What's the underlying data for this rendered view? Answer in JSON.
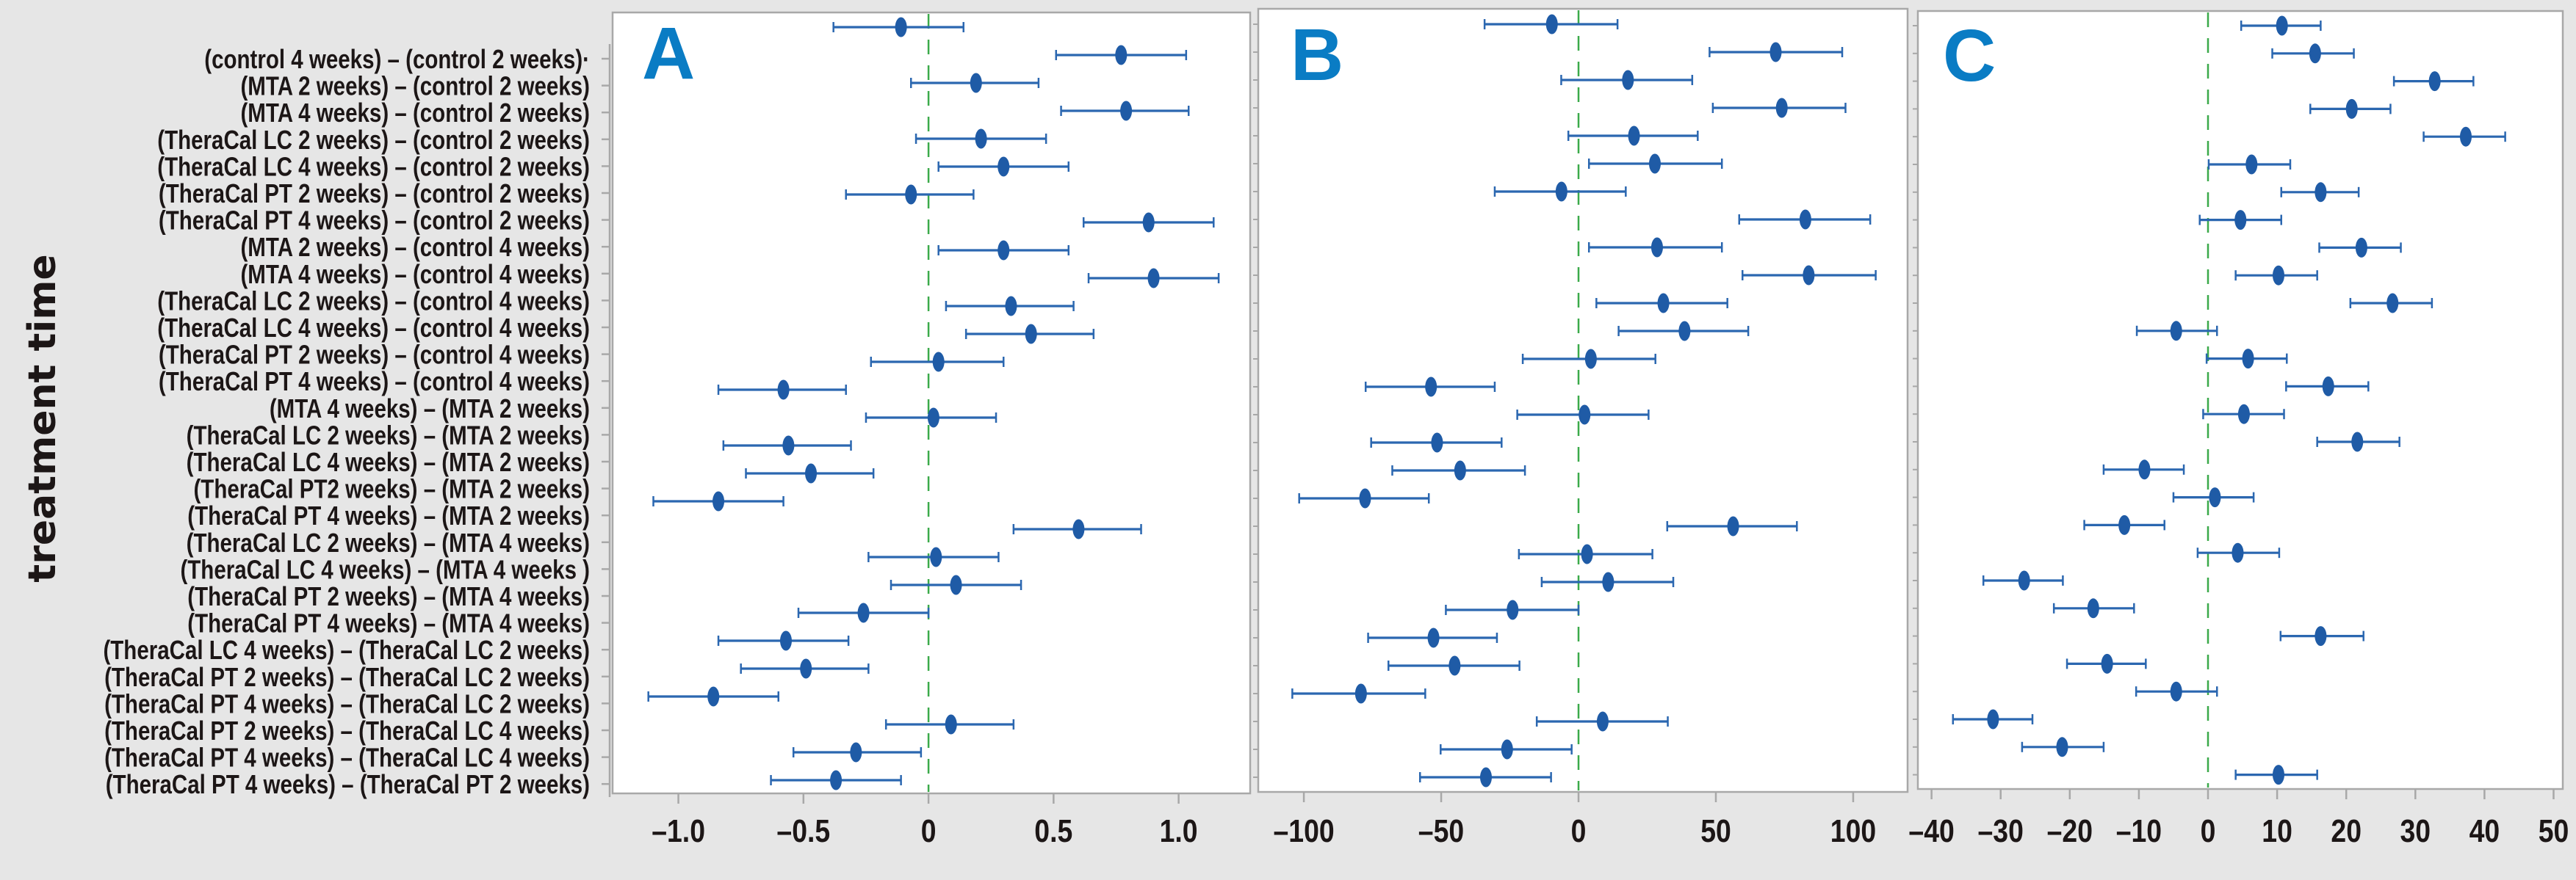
{
  "chart_data": {
    "type": "scatter",
    "subtype": "forest-plot-with-confidence-intervals",
    "ylabel": "treatment time",
    "categories": [
      "(control 4 weeks) – (control 2 weeks)·",
      "(MTA 2 weeks) – (control 2 weeks)",
      "(MTA 4 weeks) – (control 2 weeks)",
      "(TheraCal LC 2 weeks) – (control 2 weeks)",
      "(TheraCal LC 4 weeks) – (control 2 weeks)",
      "(TheraCal PT 2 weeks) – (control 2 weeks)",
      "(TheraCal PT 4 weeks) – (control 2 weeks)",
      "(MTA 2 weeks) – (control 4 weeks)",
      "(MTA 4 weeks) – (control 4 weeks)",
      "(TheraCal LC 2 weeks) – (control 4 weeks)",
      "(TheraCal LC 4 weeks) – (control 4 weeks)",
      "(TheraCal PT 2 weeks) – (control 4 weeks)",
      "(TheraCal PT 4 weeks) – (control 4 weeks)",
      "(MTA 4 weeks) – (MTA 2 weeks)",
      "(TheraCal LC 2 weeks) – (MTA 2 weeks)",
      "(TheraCal LC 4 weeks) – (MTA 2 weeks)",
      "(TheraCal PT2 weeks) – (MTA 2 weeks)",
      "(TheraCal PT 4 weeks) – (MTA 2 weeks)",
      "(TheraCal LC 2 weeks) – (MTA 4 weeks)",
      "(TheraCal LC 4 weeks) – (MTA 4 weeks )",
      "(TheraCal PT 2 weeks) – (MTA 4 weeks)",
      "(TheraCal PT 4 weeks) – (MTA 4 weeks)",
      "(TheraCal LC 4 weeks) – (TheraCal LC 2 weeks)",
      "(TheraCal PT 2 weeks) – (TheraCal LC 2 weeks)",
      "(TheraCal PT 4 weeks) – (TheraCal LC 2 weeks)",
      "(TheraCal PT 2 weeks) – (TheraCal LC 4 weeks)",
      "(TheraCal PT 4 weeks) – (TheraCal LC 4 weeks)",
      "(TheraCal PT 4 weeks) – (TheraCal PT 2 weeks)"
    ],
    "grid": false,
    "colors": {
      "marker": "#1f5ba6",
      "error_bar": "#2b67b0",
      "reference_line": "#3baa4a",
      "panel_letter": "#0a7cc4",
      "panel_border": "#a8a8a8",
      "background": "#e6e6e6"
    },
    "panels": [
      {
        "label": "A",
        "xlim": [
          -1.263,
          1.286
        ],
        "xticks": [
          -1.0,
          -0.5,
          0,
          0.5,
          1.0
        ],
        "xtick_labels": [
          "–1.0",
          "–0.5",
          "0",
          "0.5",
          "1.0"
        ],
        "reference_line": 0,
        "series": [
          {
            "name": "estimate",
            "values": [
              -0.11,
              0.77,
              0.19,
              0.79,
              0.21,
              0.3,
              -0.07,
              0.88,
              0.3,
              0.9,
              0.33,
              0.41,
              0.04,
              -0.58,
              0.02,
              -0.56,
              -0.47,
              -0.84,
              0.6,
              0.03,
              0.11,
              -0.26,
              -0.57,
              -0.49,
              -0.86,
              0.09,
              -0.29,
              -0.37
            ]
          },
          {
            "name": "lower",
            "values": [
              -0.38,
              0.51,
              -0.07,
              0.53,
              -0.05,
              0.04,
              -0.33,
              0.62,
              0.04,
              0.64,
              0.07,
              0.15,
              -0.23,
              -0.84,
              -0.25,
              -0.82,
              -0.73,
              -1.1,
              0.34,
              -0.24,
              -0.15,
              -0.52,
              -0.84,
              -0.75,
              -1.12,
              -0.17,
              -0.54,
              -0.63
            ]
          },
          {
            "name": "upper",
            "values": [
              0.14,
              1.03,
              0.44,
              1.04,
              0.47,
              0.56,
              0.18,
              1.14,
              0.56,
              1.16,
              0.58,
              0.66,
              0.3,
              -0.33,
              0.27,
              -0.31,
              -0.22,
              -0.58,
              0.85,
              0.28,
              0.37,
              0.0,
              -0.32,
              -0.24,
              -0.6,
              0.34,
              -0.03,
              -0.11
            ]
          }
        ]
      },
      {
        "label": "B",
        "xlim": [
          -116.6,
          119.8
        ],
        "xticks": [
          -100,
          -50,
          0,
          50,
          100
        ],
        "xtick_labels": [
          "–100",
          "–50",
          "0",
          "50",
          "100"
        ],
        "reference_line": 0,
        "series": [
          {
            "name": "estimate",
            "values": [
              -9.7,
              71.8,
              18.0,
              74.0,
              20.2,
              27.8,
              -6.2,
              82.6,
              28.6,
              83.8,
              30.9,
              38.6,
              4.5,
              -53.7,
              2.2,
              -51.5,
              -43.1,
              -77.7,
              56.3,
              3.1,
              10.8,
              -24.0,
              -52.8,
              -45.1,
              -79.2,
              8.8,
              -26.0,
              -33.7
            ]
          },
          {
            "name": "lower",
            "values": [
              -34.2,
              47.7,
              -6.3,
              48.9,
              -3.7,
              3.8,
              -30.5,
              58.5,
              3.8,
              59.7,
              6.5,
              14.6,
              -20.3,
              -77.5,
              -22.3,
              -75.5,
              -67.8,
              -101.7,
              32.3,
              -21.7,
              -13.4,
              -48.3,
              -76.6,
              -69.2,
              -104.2,
              -15.2,
              -50.2,
              -57.7
            ]
          },
          {
            "name": "upper",
            "values": [
              14.2,
              96.0,
              41.4,
              97.2,
              43.4,
              52.2,
              17.2,
              106.2,
              52.2,
              108.2,
              54.2,
              61.8,
              28.0,
              -30.5,
              25.5,
              -28.0,
              -19.5,
              -54.5,
              79.5,
              26.9,
              34.5,
              0.0,
              -29.7,
              -21.5,
              -55.8,
              32.5,
              -2.5,
              -10.0
            ]
          }
        ]
      },
      {
        "label": "C",
        "xlim": [
          -41.98,
          51.33
        ],
        "xticks": [
          -40,
          -30,
          -20,
          -10,
          0,
          10,
          20,
          30,
          40,
          50
        ],
        "xtick_labels": [
          "–40",
          "–30",
          "–20",
          "–10",
          "0",
          "10",
          "20",
          "30",
          "40",
          "50"
        ],
        "reference_line": 0,
        "series": [
          {
            "name": "estimate",
            "values": [
              10.7,
              15.5,
              32.8,
              20.8,
              37.3,
              6.3,
              16.3,
              4.7,
              22.2,
              10.2,
              26.7,
              -4.6,
              5.8,
              17.4,
              5.2,
              21.6,
              -9.2,
              1.0,
              -12.1,
              4.3,
              -26.6,
              -16.6,
              16.3,
              -14.6,
              -4.6,
              -31.1,
              -21.1,
              10.2
            ]
          },
          {
            "name": "lower",
            "values": [
              4.8,
              9.3,
              26.9,
              14.8,
              31.2,
              0.1,
              10.6,
              -1.2,
              16.1,
              4.0,
              20.6,
              -10.3,
              -0.2,
              11.3,
              -0.7,
              15.8,
              -15.1,
              -5.0,
              -17.9,
              -1.5,
              -32.5,
              -22.3,
              10.5,
              -20.4,
              -10.4,
              -36.9,
              -26.9,
              4.0
            ]
          },
          {
            "name": "upper",
            "values": [
              16.3,
              21.1,
              38.4,
              26.4,
              43.0,
              11.9,
              21.8,
              10.6,
              27.9,
              15.8,
              32.4,
              1.3,
              11.4,
              23.2,
              11.0,
              27.7,
              -3.5,
              6.6,
              -6.3,
              10.3,
              -21.0,
              -10.7,
              22.5,
              -9.0,
              1.3,
              -25.4,
              -15.1,
              15.8
            ]
          }
        ]
      }
    ]
  }
}
